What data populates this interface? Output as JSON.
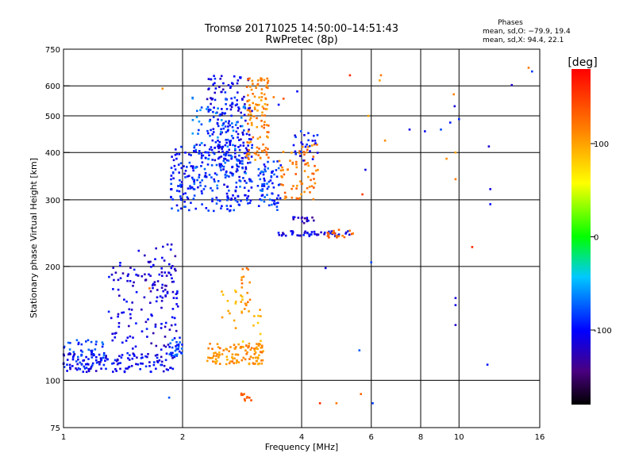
{
  "chart_data": {
    "type": "scatter",
    "title": "Tromsø 20171025 14:50:00–14:51:43",
    "subtitle": "RwPretec (8p)",
    "xlabel": "Frequency [MHz]",
    "ylabel": "Stationary phase Virtual Height [km]",
    "x_scale": "log",
    "y_scale": "log",
    "xlim": [
      1,
      16
    ],
    "ylim": [
      75,
      750
    ],
    "x_ticks": [
      1,
      2,
      4,
      6,
      8,
      10,
      16
    ],
    "y_ticks": [
      75,
      100,
      200,
      300,
      400,
      500,
      600,
      750
    ],
    "x_grid": [
      2,
      4,
      6,
      8,
      10
    ],
    "y_grid": [
      100,
      200,
      300,
      400,
      500,
      600
    ],
    "grid": true,
    "phases_title": "Phases",
    "phases_o": "mean, sd,O: −79.9, 19.4",
    "phases_x": "mean, sd,X:  94.4, 22.1",
    "colorbar": {
      "label": "[deg]",
      "ticks": [
        100,
        0,
        -100
      ],
      "range": [
        -180,
        180
      ]
    },
    "series": [
      {
        "clusters": [
          {
            "x": [
              1.0,
              1.9
            ],
            "y": [
              105,
              118
            ],
            "phase": -105,
            "n": 140
          },
          {
            "x": [
              1.0,
              1.3
            ],
            "y": [
              110,
              128
            ],
            "phase": -85,
            "n": 40
          },
          {
            "x": [
              1.3,
              1.95
            ],
            "y": [
              120,
              205
            ],
            "phase": -110,
            "n": 120
          },
          {
            "x": [
              1.6,
              1.95
            ],
            "y": [
              165,
              230
            ],
            "phase": -115,
            "n": 40
          },
          {
            "x": [
              1.85,
              2.0
            ],
            "y": [
              115,
              130
            ],
            "phase": -80,
            "n": 30
          },
          {
            "x": [
              1.85,
              3.0
            ],
            "y": [
              280,
              420
            ],
            "phase": -95,
            "n": 260
          },
          {
            "x": [
              2.3,
              3.0
            ],
            "y": [
              380,
              640
            ],
            "phase": -105,
            "n": 160
          },
          {
            "x": [
              2.1,
              2.9
            ],
            "y": [
              320,
              560
            ],
            "phase": -75,
            "n": 80
          },
          {
            "x": [
              2.9,
              3.3
            ],
            "y": [
              380,
              630
            ],
            "phase": 115,
            "n": 110
          },
          {
            "x": [
              3.1,
              3.55
            ],
            "y": [
              280,
              380
            ],
            "phase": -85,
            "n": 70
          },
          {
            "x": [
              3.5,
              4.4
            ],
            "y": [
              300,
              420
            ],
            "phase": 120,
            "n": 70
          },
          {
            "x": [
              3.8,
              4.4
            ],
            "y": [
              380,
              460
            ],
            "phase": -100,
            "n": 25
          },
          {
            "x": [
              3.4,
              5.4
            ],
            "y": [
              240,
              248
            ],
            "phase": -110,
            "n": 50
          },
          {
            "x": [
              3.8,
              4.3
            ],
            "y": [
              260,
              270
            ],
            "phase": -120,
            "n": 15
          },
          {
            "x": [
              4.5,
              5.4
            ],
            "y": [
              238,
              250
            ],
            "phase": 130,
            "n": 18
          },
          {
            "x": [
              2.3,
              3.2
            ],
            "y": [
              110,
              125
            ],
            "phase": 110,
            "n": 110
          },
          {
            "x": [
              2.5,
              3.2
            ],
            "y": [
              120,
              175
            ],
            "phase": 95,
            "n": 25
          },
          {
            "x": [
              2.8,
              3.0
            ],
            "y": [
              150,
              200
            ],
            "phase": 110,
            "n": 20
          },
          {
            "x": [
              2.8,
              3.0
            ],
            "y": [
              88,
              94
            ],
            "phase": 130,
            "n": 10
          }
        ],
        "points": [
          {
            "x": 1.55,
            "y": 220,
            "phase": -110
          },
          {
            "x": 1.65,
            "y": 175,
            "phase": 120
          },
          {
            "x": 1.78,
            "y": 590,
            "phase": 110
          },
          {
            "x": 1.85,
            "y": 90,
            "phase": -75
          },
          {
            "x": 3.4,
            "y": 560,
            "phase": 120
          },
          {
            "x": 3.5,
            "y": 535,
            "phase": -100
          },
          {
            "x": 3.6,
            "y": 555,
            "phase": 140
          },
          {
            "x": 3.9,
            "y": 580,
            "phase": -100
          },
          {
            "x": 4.6,
            "y": 198,
            "phase": -110
          },
          {
            "x": 4.45,
            "y": 87,
            "phase": 160
          },
          {
            "x": 4.9,
            "y": 87,
            "phase": 120
          },
          {
            "x": 5.3,
            "y": 640,
            "phase": 160
          },
          {
            "x": 5.6,
            "y": 120,
            "phase": -75
          },
          {
            "x": 5.65,
            "y": 92,
            "phase": 130
          },
          {
            "x": 5.7,
            "y": 310,
            "phase": 150
          },
          {
            "x": 5.8,
            "y": 360,
            "phase": -110
          },
          {
            "x": 5.9,
            "y": 500,
            "phase": 100
          },
          {
            "x": 6.0,
            "y": 205,
            "phase": -80
          },
          {
            "x": 6.05,
            "y": 87,
            "phase": -85
          },
          {
            "x": 6.3,
            "y": 620,
            "phase": 100
          },
          {
            "x": 6.35,
            "y": 640,
            "phase": 120
          },
          {
            "x": 6.5,
            "y": 430,
            "phase": 110
          },
          {
            "x": 7.5,
            "y": 460,
            "phase": -110
          },
          {
            "x": 8.2,
            "y": 455,
            "phase": -105
          },
          {
            "x": 9.0,
            "y": 460,
            "phase": -80
          },
          {
            "x": 9.3,
            "y": 385,
            "phase": 110
          },
          {
            "x": 9.5,
            "y": 480,
            "phase": -95
          },
          {
            "x": 9.7,
            "y": 570,
            "phase": 115
          },
          {
            "x": 9.75,
            "y": 530,
            "phase": -115
          },
          {
            "x": 9.8,
            "y": 400,
            "phase": 100
          },
          {
            "x": 9.8,
            "y": 340,
            "phase": 120
          },
          {
            "x": 9.8,
            "y": 140,
            "phase": -120
          },
          {
            "x": 9.8,
            "y": 165,
            "phase": -115
          },
          {
            "x": 9.8,
            "y": 158,
            "phase": -110
          },
          {
            "x": 10.0,
            "y": 490,
            "phase": -90
          },
          {
            "x": 10.8,
            "y": 225,
            "phase": 160
          },
          {
            "x": 11.8,
            "y": 110,
            "phase": -95
          },
          {
            "x": 11.9,
            "y": 415,
            "phase": -115
          },
          {
            "x": 12.0,
            "y": 320,
            "phase": -110
          },
          {
            "x": 12.0,
            "y": 292,
            "phase": -100
          },
          {
            "x": 13.6,
            "y": 603,
            "phase": -120
          },
          {
            "x": 15.0,
            "y": 670,
            "phase": 120
          },
          {
            "x": 15.3,
            "y": 655,
            "phase": -85
          }
        ]
      }
    ]
  }
}
